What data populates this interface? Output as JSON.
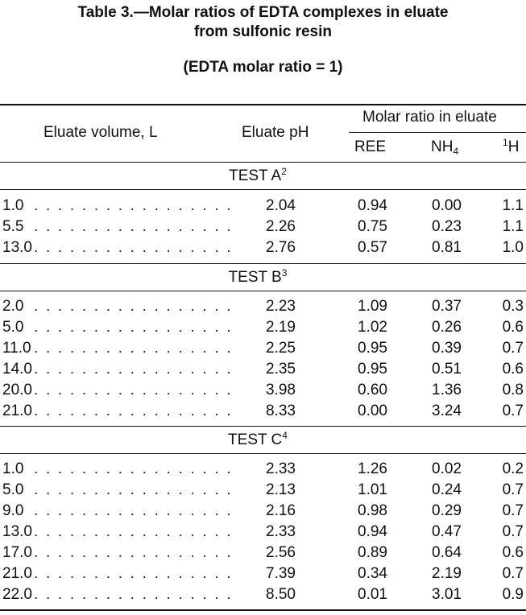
{
  "title": {
    "line1": "Table 3.—Molar ratios of EDTA complexes in eluate",
    "line2": "from sulfonic resin",
    "subtitle": "(EDTA molar ratio = 1)"
  },
  "headers": {
    "eluate_volume": "Eluate volume, L",
    "eluate_ph": "Eluate pH",
    "molar_ratio_group": "Molar ratio in eluate",
    "ree": "REE",
    "nh4_main": "NH",
    "nh4_sub": "4",
    "h_sup": "1",
    "h_main": "H"
  },
  "leader_dots": ". . . . . . . . . . . . . . . . .",
  "tests": [
    {
      "label": "TEST A",
      "note": "2",
      "rows": [
        {
          "volume": "1.0",
          "ph": "2.04",
          "ree": "0.94",
          "nh4": "0.00",
          "h": "1.1"
        },
        {
          "volume": "5.5",
          "ph": "2.26",
          "ree": "0.75",
          "nh4": "0.23",
          "h": "1.1"
        },
        {
          "volume": "13.0",
          "ph": "2.76",
          "ree": "0.57",
          "nh4": "0.81",
          "h": "1.0"
        }
      ]
    },
    {
      "label": "TEST B",
      "note": "3",
      "rows": [
        {
          "volume": "2.0",
          "ph": "2.23",
          "ree": "1.09",
          "nh4": "0.37",
          "h": "0.3"
        },
        {
          "volume": "5.0",
          "ph": "2.19",
          "ree": "1.02",
          "nh4": "0.26",
          "h": "0.6"
        },
        {
          "volume": "11.0",
          "ph": "2.25",
          "ree": "0.95",
          "nh4": "0.39",
          "h": "0.7"
        },
        {
          "volume": "14.0",
          "ph": "2.35",
          "ree": "0.95",
          "nh4": "0.51",
          "h": "0.6"
        },
        {
          "volume": "20.0",
          "ph": "3.98",
          "ree": "0.60",
          "nh4": "1.36",
          "h": "0.8"
        },
        {
          "volume": "21.0",
          "ph": "8.33",
          "ree": "0.00",
          "nh4": "3.24",
          "h": "0.7"
        }
      ]
    },
    {
      "label": "TEST C",
      "note": "4",
      "rows": [
        {
          "volume": "1.0",
          "ph": "2.33",
          "ree": "1.26",
          "nh4": "0.02",
          "h": "0.2"
        },
        {
          "volume": "5.0",
          "ph": "2.13",
          "ree": "1.01",
          "nh4": "0.24",
          "h": "0.7"
        },
        {
          "volume": "9.0",
          "ph": "2.16",
          "ree": "0.98",
          "nh4": "0.29",
          "h": "0.7"
        },
        {
          "volume": "13.0",
          "ph": "2.33",
          "ree": "0.94",
          "nh4": "0.47",
          "h": "0.7"
        },
        {
          "volume": "17.0",
          "ph": "2.56",
          "ree": "0.89",
          "nh4": "0.64",
          "h": "0.6"
        },
        {
          "volume": "21.0",
          "ph": "7.39",
          "ree": "0.34",
          "nh4": "2.19",
          "h": "0.7"
        },
        {
          "volume": "22.0",
          "ph": "8.50",
          "ree": "0.01",
          "nh4": "3.01",
          "h": "0.9"
        }
      ]
    }
  ]
}
